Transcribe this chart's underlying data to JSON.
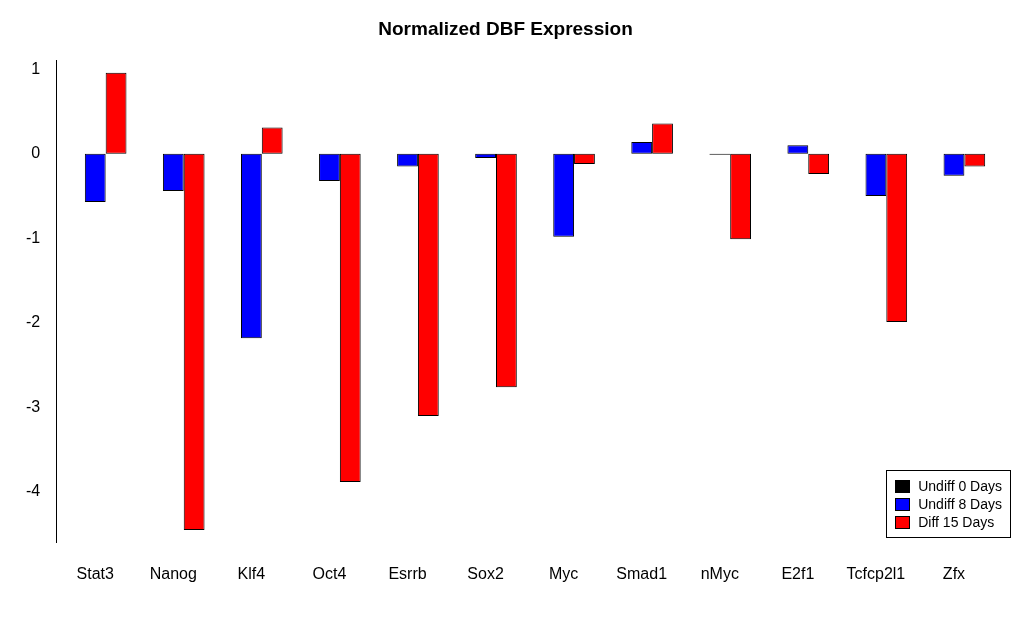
{
  "chart_data": {
    "type": "bar",
    "title": "Normalized DBF Expression",
    "categories": [
      "Stat3",
      "Nanog",
      "Klf4",
      "Oct4",
      "Esrrb",
      "Sox2",
      "Myc",
      "Smad1",
      "nMyc",
      "E2f1",
      "Tcfcp2l1",
      "Zfx"
    ],
    "series": [
      {
        "name": "Undiff 0 Days",
        "color": "#000000",
        "values": [
          0,
          0,
          0,
          0,
          0,
          0,
          0,
          0,
          0,
          0,
          0,
          0
        ]
      },
      {
        "name": "Undiff 8 Days",
        "color": "#0000ff",
        "values": [
          -0.57,
          -0.44,
          -2.18,
          -0.32,
          -0.15,
          -0.05,
          -0.98,
          0.14,
          -0.01,
          0.1,
          -0.5,
          -0.26
        ]
      },
      {
        "name": "Diff 15 Days",
        "color": "#ff0000",
        "values": [
          0.96,
          -4.45,
          0.31,
          -3.88,
          -3.1,
          -2.76,
          -0.12,
          0.36,
          -1.01,
          -0.24,
          -1.99,
          -0.15
        ]
      }
    ],
    "ylim": [
      -4.6,
      1.1
    ],
    "yticks": [
      -4,
      -3,
      -2,
      -1,
      0,
      1
    ],
    "grid": false,
    "legend": "bottom right"
  }
}
